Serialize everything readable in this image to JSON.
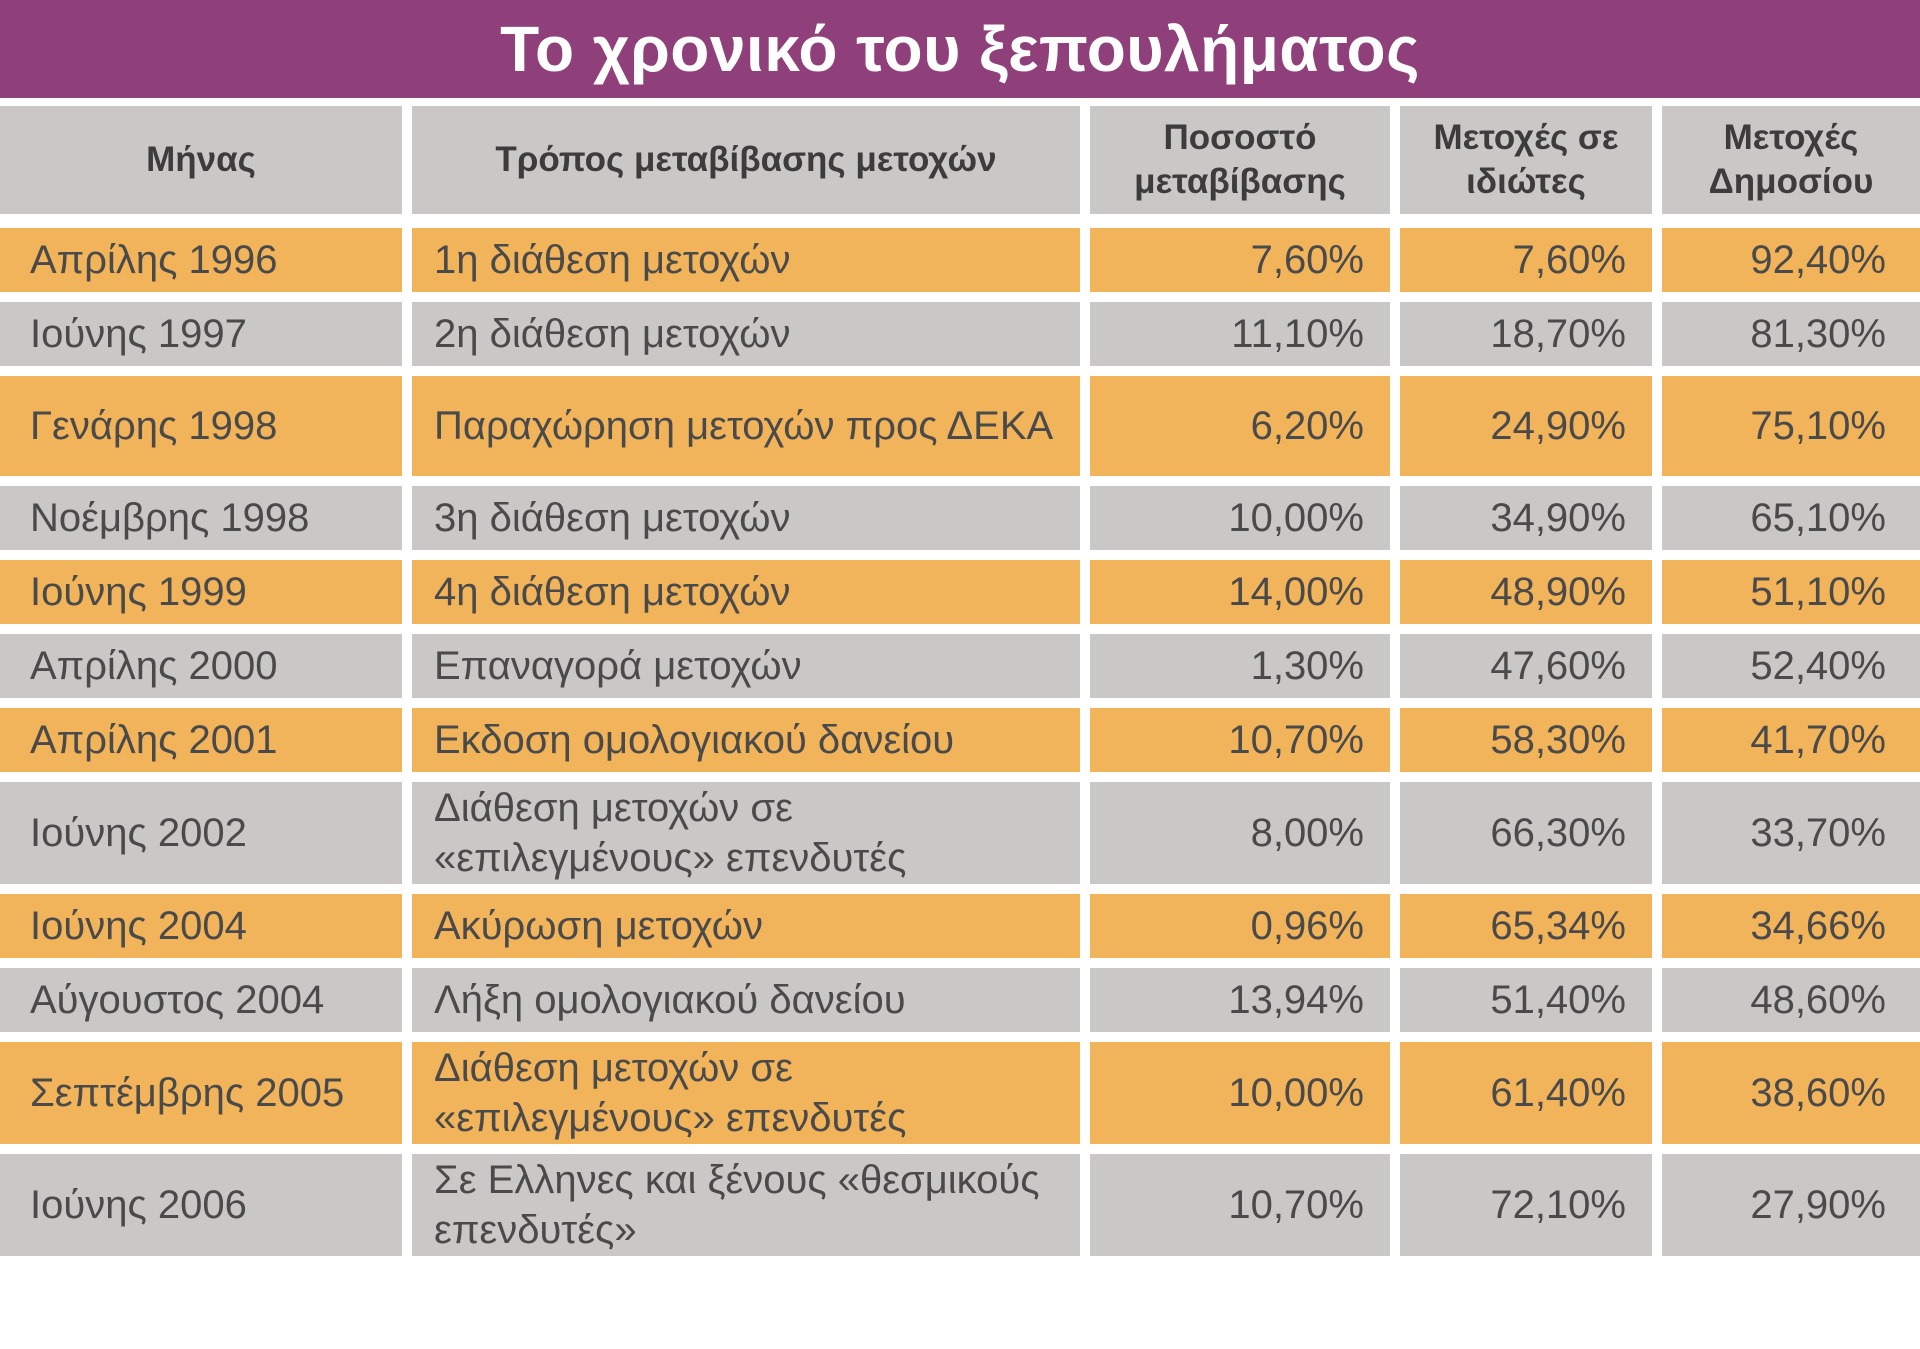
{
  "title": "Το χρονικό του ξεπουλήματος",
  "colors": {
    "title_background": "#8f3f7a",
    "header_background": "#c9c8c6",
    "row_orange": "#f2b45a",
    "row_gray": "#c9c8c6",
    "text": "#4a4a4a"
  },
  "chart_data": {
    "type": "table",
    "title": "Το χρονικό του ξεπουλήματος",
    "columns": [
      "Μήνας",
      "Τρόπος μεταβίβασης μετοχών",
      "Ποσοστό μεταβίβασης",
      "Μετοχές σε ιδιώτες",
      "Μετοχές Δημοσίου"
    ],
    "rows": [
      [
        "Απρίλης 1996",
        "1η διάθεση μετοχών",
        "7,60%",
        "7,60%",
        "92,40%"
      ],
      [
        "Ιούνης 1997",
        "2η διάθεση μετοχών",
        "11,10%",
        "18,70%",
        "81,30%"
      ],
      [
        "Γενάρης 1998",
        "Παραχώρηση μετοχών προς ΔΕΚΑ",
        "6,20%",
        "24,90%",
        "75,10%"
      ],
      [
        "Νοέμβρης 1998",
        "3η διάθεση μετοχών",
        "10,00%",
        "34,90%",
        "65,10%"
      ],
      [
        "Ιούνης 1999",
        "4η διάθεση μετοχών",
        "14,00%",
        "48,90%",
        "51,10%"
      ],
      [
        "Απρίλης 2000",
        "Επαναγορά μετοχών",
        "1,30%",
        "47,60%",
        "52,40%"
      ],
      [
        "Απρίλης 2001",
        "Εκδοση ομολογιακού δανείου",
        "10,70%",
        "58,30%",
        "41,70%"
      ],
      [
        "Ιούνης 2002",
        "Διάθεση μετοχών σε «επιλεγμένους» επενδυτές",
        "8,00%",
        "66,30%",
        "33,70%"
      ],
      [
        "Ιούνης 2004",
        "Ακύρωση μετοχών",
        "0,96%",
        "65,34%",
        "34,66%"
      ],
      [
        "Αύγουστος 2004",
        "Λήξη ομολογιακού δανείου",
        "13,94%",
        "51,40%",
        "48,60%"
      ],
      [
        "Σεπτέμβρης 2005",
        "Διάθεση μετοχών σε «επιλεγμένους» επενδυτές",
        "10,00%",
        "61,40%",
        "38,60%"
      ],
      [
        "Ιούνης 2006",
        "Σε Ελληνες και ξένους «θεσμικούς επενδυτές»",
        "10,70%",
        "72,10%",
        "27,90%"
      ]
    ]
  }
}
